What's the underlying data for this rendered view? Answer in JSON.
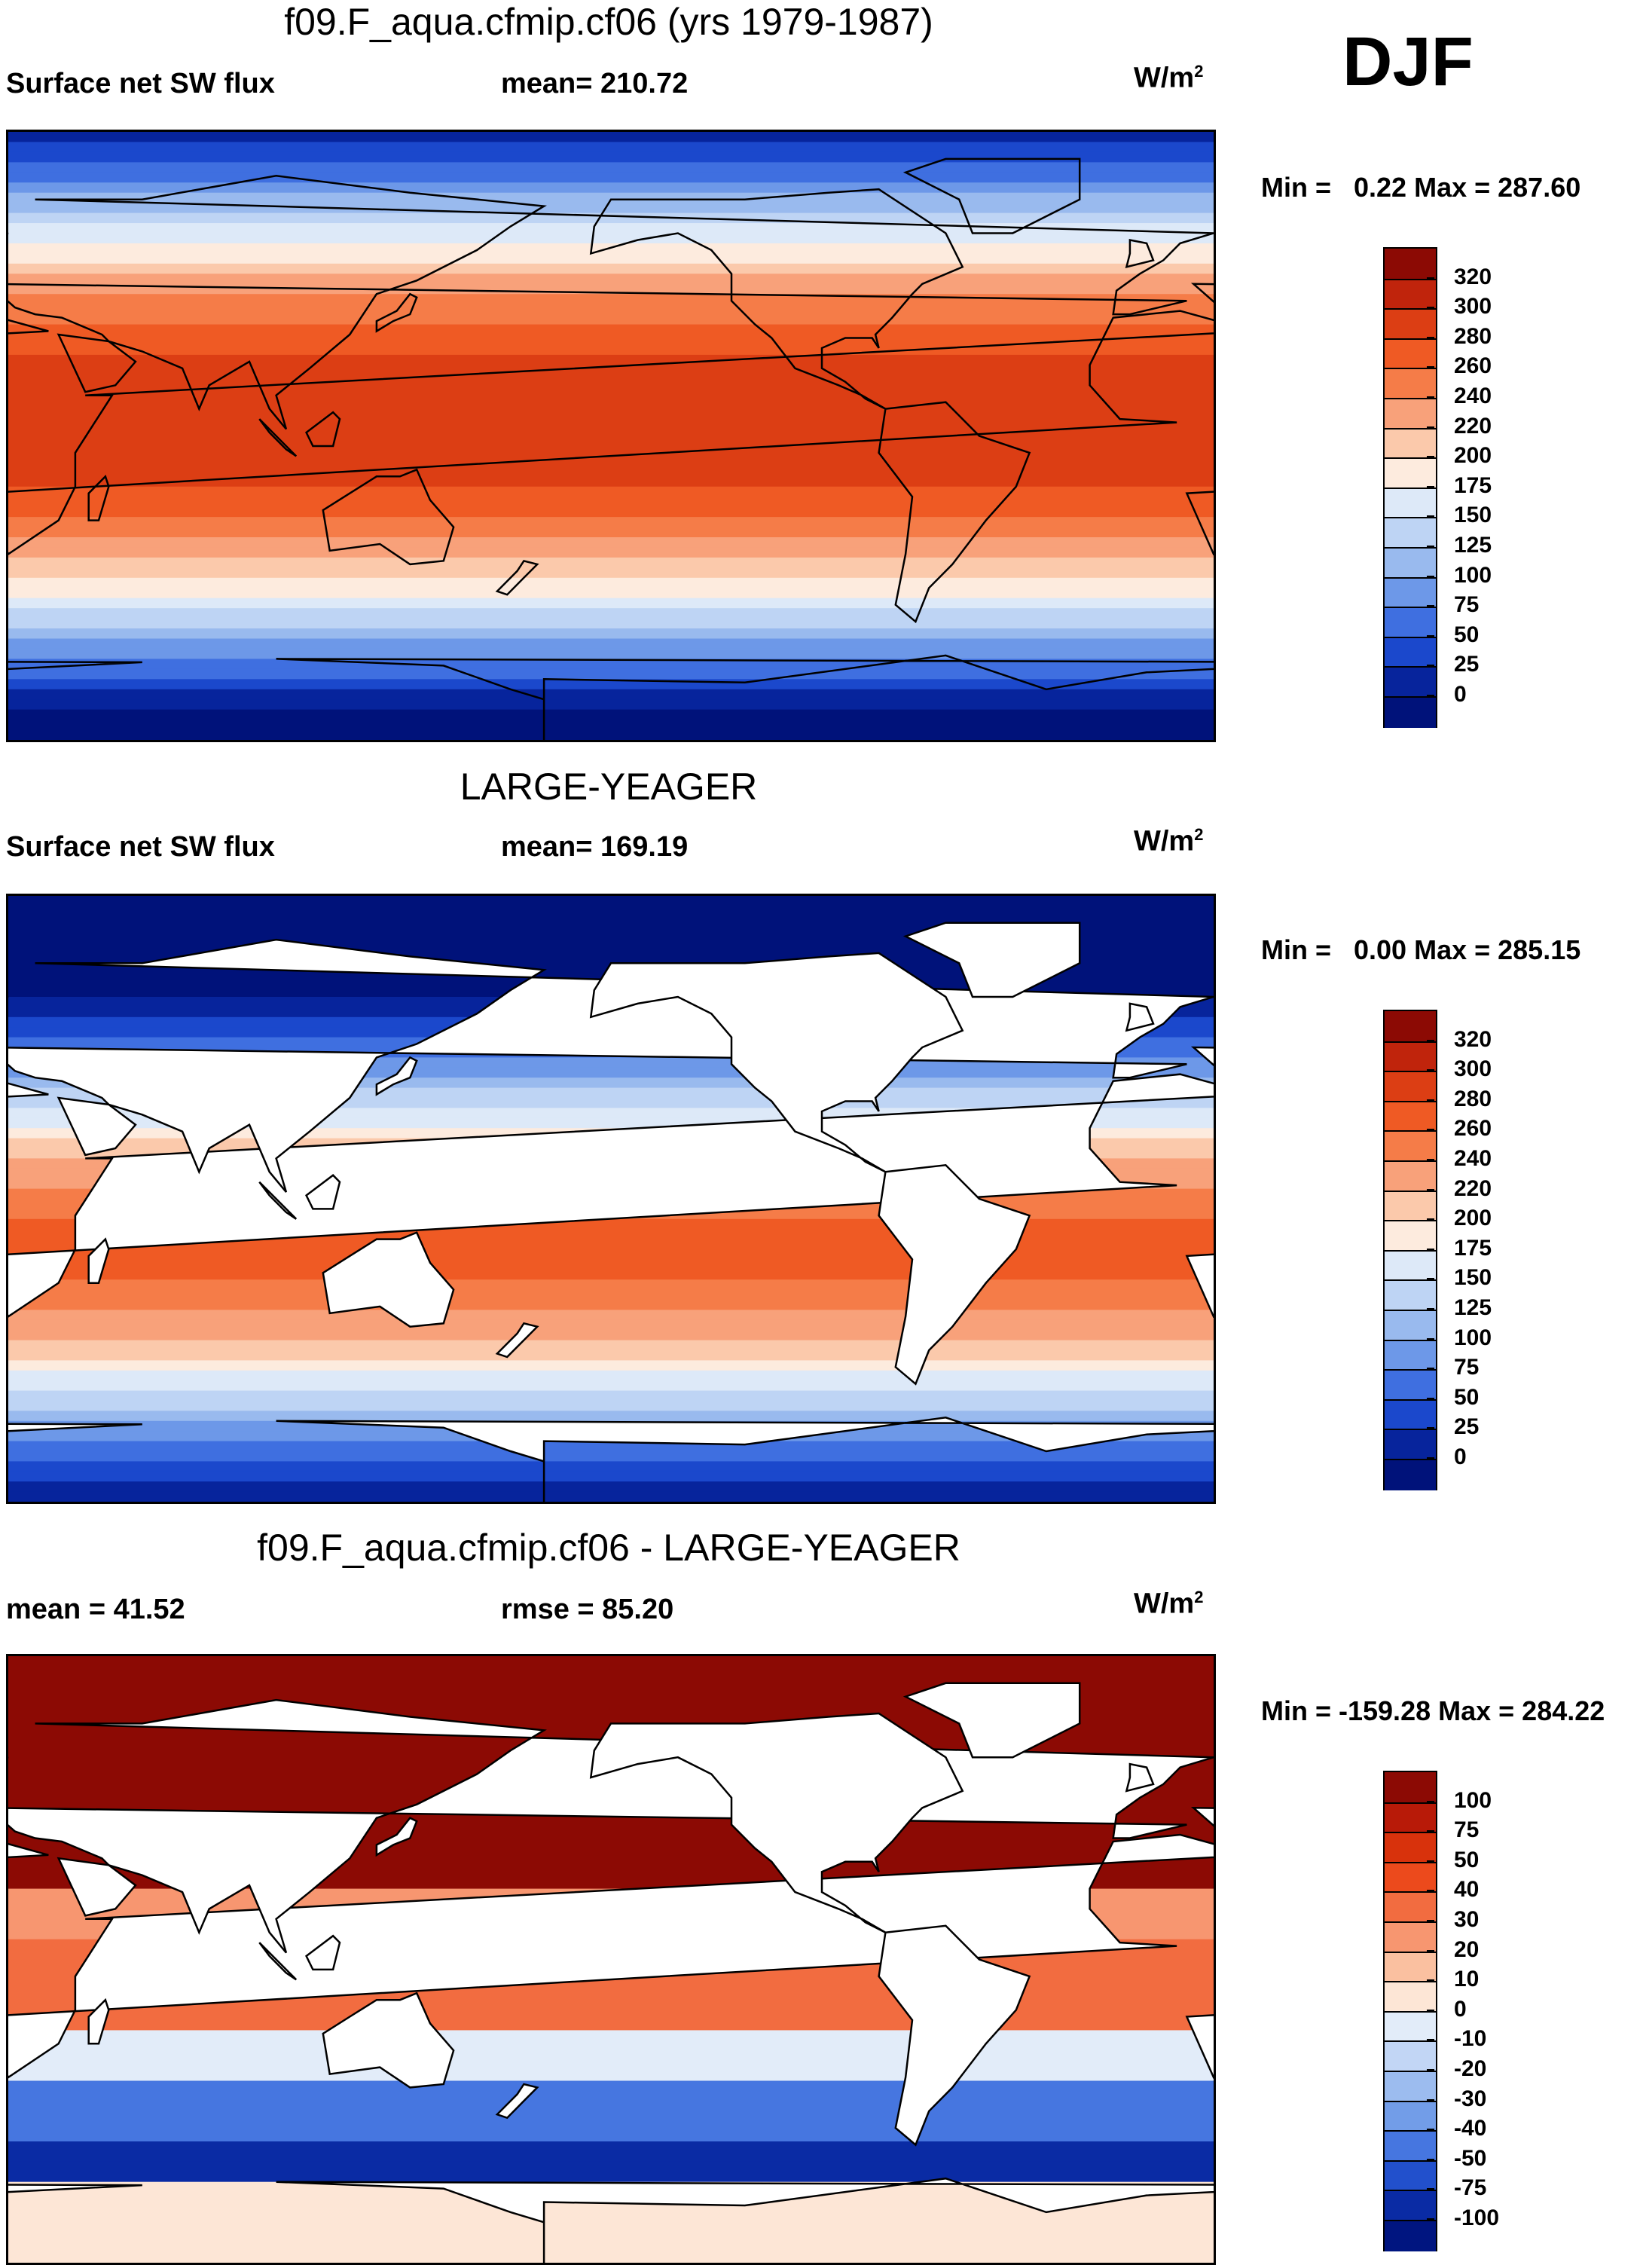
{
  "season": "DJF",
  "panels": [
    {
      "id": "model",
      "title": "f09.F_aqua.cfmip.cf06 (yrs 1979-1987)",
      "left_label": "Surface net SW flux",
      "center_label": "mean= 210.72",
      "units": "W/m",
      "units_exp": "2",
      "minmax": "Min =   0.22 Max = 287.60",
      "colorbar": {
        "labels": [
          "320",
          "300",
          "280",
          "260",
          "240",
          "220",
          "200",
          "175",
          "150",
          "125",
          "100",
          "75",
          "50",
          "25",
          "0"
        ],
        "colors": [
          "#8c0a04",
          "#c0240c",
          "#dc3e14",
          "#ef5a24",
          "#f57c48",
          "#f8a17a",
          "#fbc9ab",
          "#fdebde",
          "#dde9f8",
          "#bed4f4",
          "#99baee",
          "#6d98e8",
          "#3f6fe0",
          "#1b48cc",
          "#07249c",
          "#00127a"
        ]
      }
    },
    {
      "id": "obs",
      "title": "LARGE-YEAGER",
      "left_label": "Surface net SW flux",
      "center_label": "mean= 169.19",
      "units": "W/m",
      "units_exp": "2",
      "minmax": "Min =   0.00 Max = 285.15",
      "colorbar": {
        "labels": [
          "320",
          "300",
          "280",
          "260",
          "240",
          "220",
          "200",
          "175",
          "150",
          "125",
          "100",
          "75",
          "50",
          "25",
          "0"
        ],
        "colors": [
          "#8c0a04",
          "#c0240c",
          "#dc3e14",
          "#ef5a24",
          "#f57c48",
          "#f8a17a",
          "#fbc9ab",
          "#fdebde",
          "#dde9f8",
          "#bed4f4",
          "#99baee",
          "#6d98e8",
          "#3f6fe0",
          "#1b48cc",
          "#07249c",
          "#00127a"
        ]
      }
    },
    {
      "id": "diff",
      "title": "f09.F_aqua.cfmip.cf06 - LARGE-YEAGER",
      "left_label": "mean =  41.52",
      "center_label": "rmse =  85.20",
      "units": "W/m",
      "units_exp": "2",
      "minmax": "Min = -159.28 Max = 284.22",
      "colorbar": {
        "labels": [
          "100",
          "75",
          "50",
          "40",
          "30",
          "20",
          "10",
          "0",
          "-10",
          "-20",
          "-30",
          "-40",
          "-50",
          "-75",
          "-100"
        ],
        "colors": [
          "#8c0a04",
          "#b81a08",
          "#d8320c",
          "#ec4a1c",
          "#f26c40",
          "#f79670",
          "#fac0a0",
          "#fde6d6",
          "#e2ecf9",
          "#c2d6f5",
          "#9cbcef",
          "#729de8",
          "#4676e0",
          "#2250cc",
          "#0a2ba4",
          "#001580"
        ]
      }
    }
  ]
}
